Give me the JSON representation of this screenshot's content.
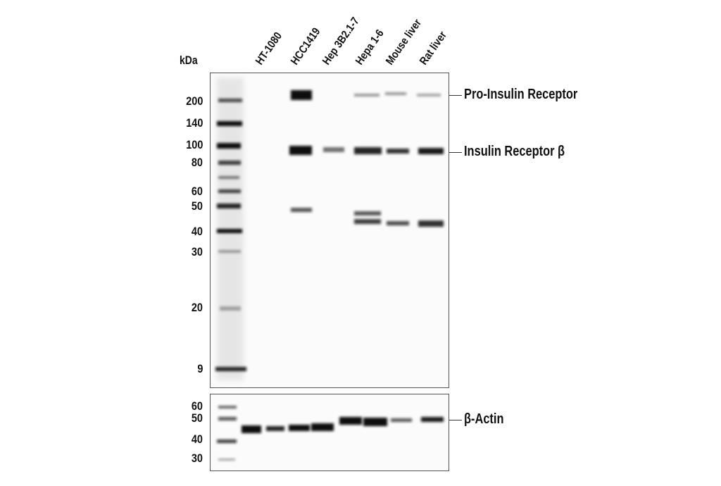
{
  "figure": {
    "kda_label": "kDa",
    "lanes": [
      "HT-1080",
      "HCC1419",
      "Hep 3B2.1-7",
      "Hepa 1-6",
      "Mouse liver",
      "Rat liver"
    ],
    "top_markers": [
      "200",
      "140",
      "100",
      "80",
      "60",
      "50",
      "40",
      "30",
      "20",
      "9"
    ],
    "bottom_markers": [
      "60",
      "50",
      "40",
      "30"
    ],
    "targets": {
      "pro_ir": "Pro-Insulin Receptor",
      "ir_beta": "Insulin Receptor β",
      "actin": "β-Actin"
    },
    "colors": {
      "band": "#0a0a0a",
      "frame": "#555555"
    }
  }
}
